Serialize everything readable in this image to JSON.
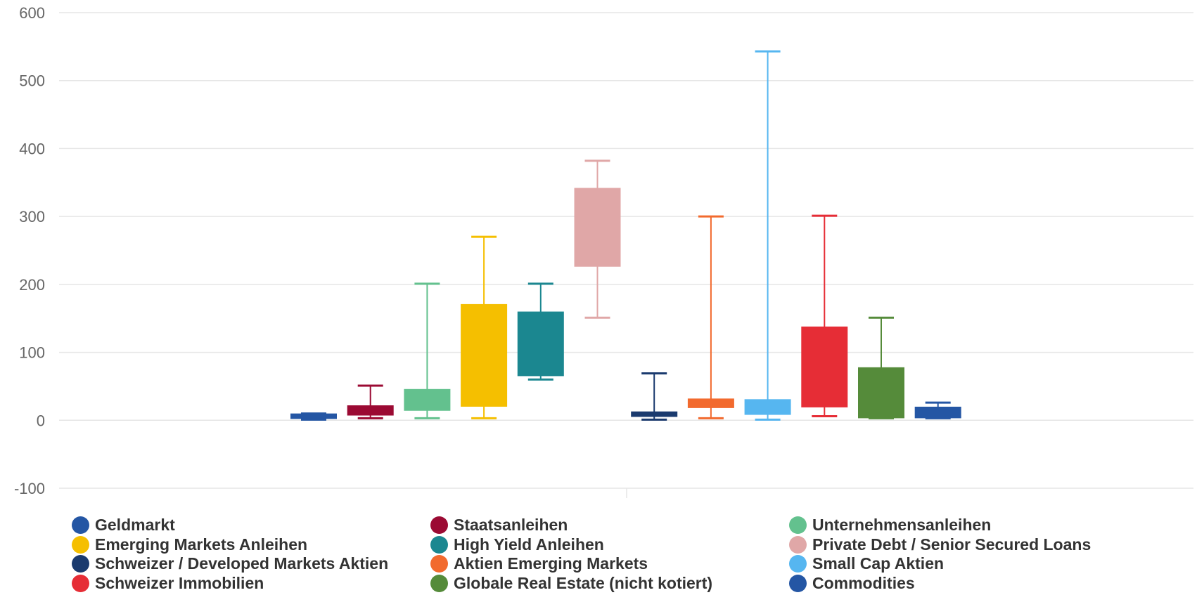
{
  "chart_data": {
    "type": "boxplot",
    "ylim": [
      -100,
      600
    ],
    "yticks": [
      -100,
      0,
      100,
      200,
      300,
      400,
      500,
      600
    ],
    "grid": true,
    "legend_position": "bottom",
    "series": [
      {
        "name": "Geldmarkt",
        "color": "#2456a4",
        "min": 1,
        "q1": 2,
        "q3": 10,
        "max": 10
      },
      {
        "name": "Staatsanleihen",
        "color": "#9b0a33",
        "min": 3,
        "q1": 7,
        "q3": 22,
        "max": 51
      },
      {
        "name": "Unternehmensanleihen",
        "color": "#63c18e",
        "min": 3,
        "q1": 14,
        "q3": 46,
        "max": 201
      },
      {
        "name": "Emerging Markets Anleihen",
        "color": "#f5bf00",
        "min": 3,
        "q1": 20,
        "q3": 171,
        "max": 270
      },
      {
        "name": "High Yield Anleihen",
        "color": "#1b8790",
        "min": 60,
        "q1": 65,
        "q3": 160,
        "max": 201
      },
      {
        "name": "Private Debt / Senior Secured Loans",
        "color": "#e0a7a7",
        "min": 151,
        "q1": 226,
        "q3": 342,
        "max": 382
      },
      {
        "name": "Schweizer / Developed Markets Aktien",
        "color": "#1a3a6e",
        "min": 1,
        "q1": 5,
        "q3": 13,
        "max": 69
      },
      {
        "name": "Aktien Emerging Markets",
        "color": "#f26a2e",
        "min": 3,
        "q1": 18,
        "q3": 32,
        "max": 300
      },
      {
        "name": "Small Cap Aktien",
        "color": "#56b6f0",
        "min": 1,
        "q1": 8,
        "q3": 31,
        "max": 543
      },
      {
        "name": "Schweizer Immobilien",
        "color": "#e62d36",
        "min": 6,
        "q1": 19,
        "q3": 138,
        "max": 301
      },
      {
        "name": "Globale Real Estate (nicht kotiert)",
        "color": "#558b3a",
        "min": 3,
        "q1": 3,
        "q3": 78,
        "max": 151
      },
      {
        "name": "Commodities",
        "color": "#2456a4",
        "min": 3,
        "q1": 3,
        "q3": 20,
        "max": 26
      }
    ]
  }
}
